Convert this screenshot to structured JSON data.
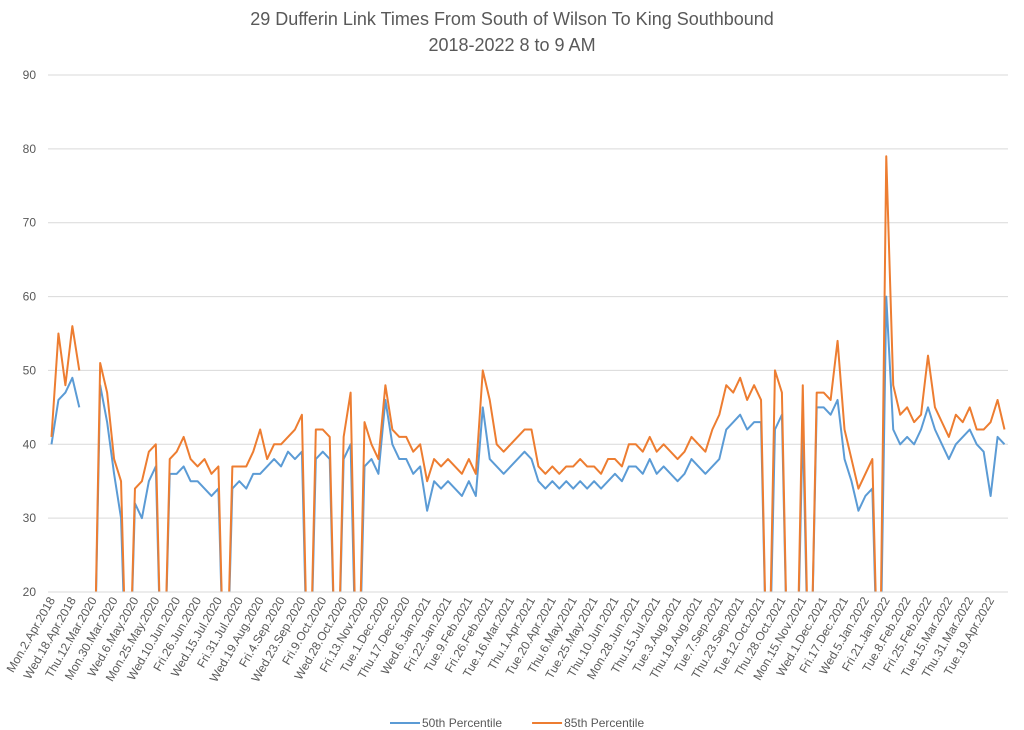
{
  "chart_data": {
    "type": "line",
    "title": "29 Dufferin Link Times From South of Wilson To King Southbound",
    "subtitle": "2018-2022 8 to 9 AM",
    "categories": [
      "Mon.2.Apr.2018",
      null,
      null,
      "Wed.18.Apr.2018",
      null,
      null,
      "Thu.12.Mar.2020",
      null,
      null,
      "Mon.30.Mar.2020",
      null,
      null,
      "Wed.6.May.2020",
      null,
      null,
      "Mon.25.May.2020",
      null,
      null,
      "Wed.10.Jun.2020",
      null,
      null,
      "Fri.26.Jun.2020",
      null,
      null,
      "Wed.15.Jul.2020",
      null,
      null,
      "Fri.31.Jul.2020",
      null,
      null,
      "Wed.19.Aug.2020",
      null,
      null,
      "Fri.4.Sep.2020",
      null,
      null,
      "Wed.23.Sep.2020",
      null,
      null,
      "Fri.9.Oct.2020",
      null,
      null,
      "Wed.28.Oct.2020",
      null,
      null,
      "Fri.13.Nov.2020",
      null,
      null,
      "Tue.1.Dec.2020",
      null,
      null,
      "Thu.17.Dec.2020",
      null,
      null,
      "Wed.6.Jan.2021",
      null,
      null,
      "Fri.22.Jan.2021",
      null,
      null,
      "Tue.9.Feb.2021",
      null,
      null,
      "Fri.26.Feb.2021",
      null,
      null,
      "Tue.16.Mar.2021",
      null,
      null,
      "Thu.1.Apr.2021",
      null,
      null,
      "Tue.20.Apr.2021",
      null,
      null,
      "Thu.6.May.2021",
      null,
      null,
      "Tue.25.May.2021",
      null,
      null,
      "Thu.10.Jun.2021",
      null,
      null,
      "Mon.28.Jun.2021",
      null,
      null,
      "Thu.15.Jul.2021",
      null,
      null,
      "Tue.3.Aug.2021",
      null,
      null,
      "Thu.19.Aug.2021",
      null,
      null,
      "Tue.7.Sep.2021",
      null,
      null,
      "Thu.23.Sep.2021",
      null,
      null,
      "Tue.12.Oct.2021",
      null,
      null,
      "Thu.28.Oct.2021",
      null,
      null,
      "Mon.15.Nov.2021",
      null,
      null,
      "Wed.1.Dec.2021",
      null,
      null,
      "Fri.17.Dec.2021",
      null,
      null,
      "Wed.5.Jan.2022",
      null,
      null,
      "Fri.21.Jan.2022",
      null,
      null,
      "Tue.8.Feb.2022",
      null,
      null,
      "Fri.25.Feb.2022",
      null,
      null,
      "Tue.15.Mar.2022",
      null,
      null,
      "Thu.31.Mar.2022",
      null,
      null,
      "Tue.19.Apr.2022",
      null,
      null
    ],
    "series": [
      {
        "name": "50th Percentile",
        "color": "#5b9bd5",
        "values": [
          40,
          46,
          47,
          49,
          45,
          null,
          0,
          48,
          43,
          36,
          30,
          0,
          32,
          30,
          35,
          37,
          0,
          36,
          36,
          37,
          35,
          35,
          34,
          33,
          34,
          0,
          34,
          35,
          34,
          36,
          36,
          37,
          38,
          37,
          39,
          38,
          39,
          0,
          38,
          39,
          38,
          0,
          38,
          40,
          0,
          37,
          38,
          36,
          46,
          40,
          38,
          38,
          36,
          37,
          31,
          35,
          34,
          35,
          34,
          33,
          35,
          33,
          45,
          38,
          37,
          36,
          37,
          38,
          39,
          38,
          35,
          34,
          35,
          34,
          35,
          34,
          35,
          34,
          35,
          34,
          35,
          36,
          35,
          37,
          37,
          36,
          38,
          36,
          37,
          36,
          35,
          36,
          38,
          37,
          36,
          37,
          38,
          42,
          43,
          44,
          42,
          43,
          43,
          0,
          42,
          44,
          0,
          0,
          43,
          0,
          45,
          45,
          44,
          46,
          38,
          35,
          31,
          33,
          34,
          0,
          60,
          42,
          40,
          41,
          40,
          42,
          45,
          42,
          40,
          38,
          40,
          41,
          42,
          40,
          39,
          33,
          41,
          40
        ]
      },
      {
        "name": "85th Percentile",
        "color": "#ed7d31",
        "values": [
          41,
          55,
          48,
          56,
          50,
          null,
          0,
          51,
          47,
          38,
          35,
          0,
          34,
          35,
          39,
          40,
          0,
          38,
          39,
          41,
          38,
          37,
          38,
          36,
          37,
          0,
          37,
          37,
          37,
          39,
          42,
          38,
          40,
          40,
          41,
          42,
          44,
          0,
          42,
          42,
          41,
          0,
          41,
          47,
          0,
          43,
          40,
          38,
          48,
          42,
          41,
          41,
          39,
          40,
          35,
          38,
          37,
          38,
          37,
          36,
          38,
          36,
          50,
          46,
          40,
          39,
          40,
          41,
          42,
          42,
          37,
          36,
          37,
          36,
          37,
          37,
          38,
          37,
          37,
          36,
          38,
          38,
          37,
          40,
          40,
          39,
          41,
          39,
          40,
          39,
          38,
          39,
          41,
          40,
          39,
          42,
          44,
          48,
          47,
          49,
          46,
          48,
          46,
          0,
          50,
          47,
          0,
          0,
          48,
          0,
          47,
          47,
          46,
          54,
          42,
          38,
          34,
          36,
          38,
          0,
          79,
          48,
          44,
          45,
          43,
          44,
          52,
          45,
          43,
          41,
          44,
          43,
          45,
          42,
          42,
          43,
          46,
          42
        ]
      }
    ],
    "ylim": [
      20,
      90
    ],
    "yticks": [
      20,
      30,
      40,
      50,
      60,
      70,
      80,
      90
    ],
    "grid": true,
    "legend": "bottom"
  }
}
